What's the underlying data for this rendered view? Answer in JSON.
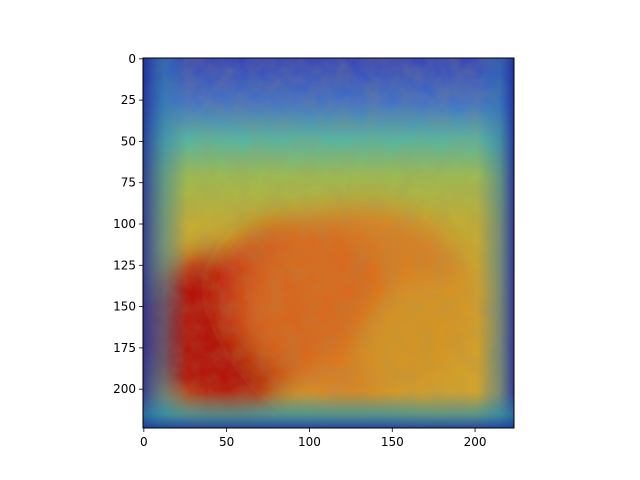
{
  "chart_data": {
    "type": "heatmap",
    "description_visible": "image overlaid with jet-colormap saliency heatmap",
    "x_ticks": [
      0,
      50,
      100,
      150,
      200
    ],
    "y_ticks": [
      0,
      25,
      50,
      75,
      100,
      125,
      150,
      175,
      200
    ],
    "xlim": [
      -0.5,
      223.5
    ],
    "ylim": [
      223.5,
      -0.5
    ],
    "grid": false,
    "colormap": "jet",
    "hotspots": [
      {
        "x": 50,
        "y": 165,
        "intensity": 1.0,
        "spread": 55
      },
      {
        "x": 95,
        "y": 140,
        "intensity": 0.85,
        "spread": 50
      },
      {
        "x": 130,
        "y": 150,
        "intensity": 0.65,
        "spread": 70
      },
      {
        "x": 180,
        "y": 175,
        "intensity": 0.45,
        "spread": 50
      }
    ]
  }
}
